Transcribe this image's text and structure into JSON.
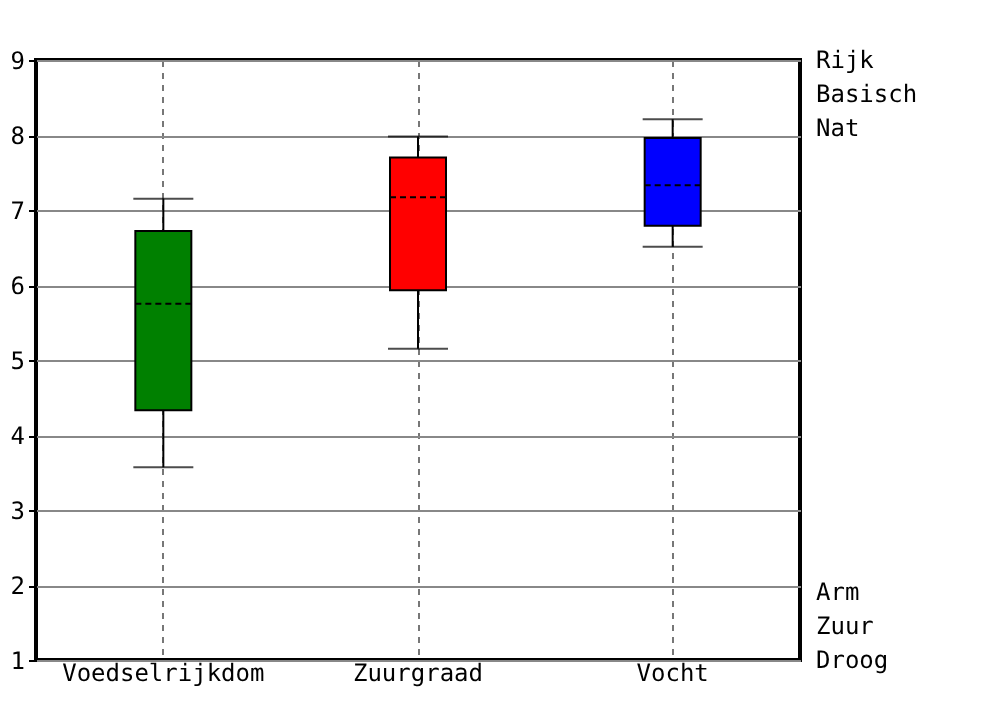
{
  "chart_data": {
    "type": "box",
    "categories": [
      "Voedselrijkdom",
      "Zuurgraad",
      "Vocht"
    ],
    "colors": [
      "#008000",
      "#ff0000",
      "#0000ff"
    ],
    "boxes": [
      {
        "low": 3.57,
        "q1": 4.33,
        "median": 5.75,
        "q3": 6.72,
        "high": 7.15
      },
      {
        "low": 5.15,
        "q1": 5.93,
        "median": 7.17,
        "q3": 7.7,
        "high": 7.98
      },
      {
        "low": 6.51,
        "q1": 6.79,
        "median": 7.33,
        "q3": 7.96,
        "high": 8.21
      }
    ],
    "ylim": [
      1,
      9
    ],
    "yticks": [
      1,
      2,
      3,
      4,
      5,
      6,
      7,
      8,
      9
    ],
    "grid": true,
    "annotations": [
      "Rijk",
      "Basisch",
      "Nat",
      "Arm",
      "Zuur",
      "Droog"
    ]
  }
}
